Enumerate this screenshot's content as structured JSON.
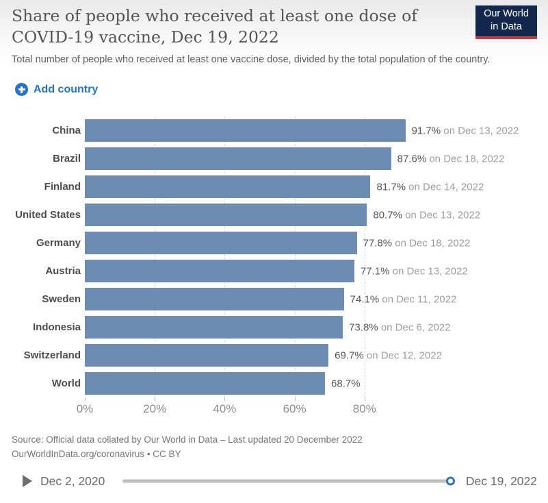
{
  "header": {
    "title": "Share of people who received at least one dose of COVID-19 vaccine, Dec 19, 2022",
    "subtitle": "Total number of people who received at least one vaccine dose, divided by the total population of the country.",
    "logo": {
      "line1": "Our World",
      "line2": "in Data"
    }
  },
  "controls": {
    "add_country_label": "Add country"
  },
  "chart_data": {
    "type": "bar",
    "orientation": "horizontal",
    "title": "Share of people who received at least one dose of COVID-19 vaccine, Dec 19, 2022",
    "categories": [
      "China",
      "Brazil",
      "Finland",
      "United States",
      "Germany",
      "Austria",
      "Sweden",
      "Indonesia",
      "Switzerland",
      "World"
    ],
    "values": [
      91.7,
      87.6,
      81.7,
      80.7,
      77.8,
      77.1,
      74.1,
      73.8,
      69.7,
      68.7
    ],
    "value_labels": [
      "91.7%",
      "87.6%",
      "81.7%",
      "80.7%",
      "77.8%",
      "77.1%",
      "74.1%",
      "73.8%",
      "69.7%",
      "68.7%"
    ],
    "date_labels": [
      "on Dec 13, 2022",
      "on Dec 18, 2022",
      "on Dec 14, 2022",
      "on Dec 13, 2022",
      "on Dec 18, 2022",
      "on Dec 13, 2022",
      "on Dec 11, 2022",
      "on Dec 6, 2022",
      "on Dec 12, 2022",
      ""
    ],
    "unit": "%",
    "xlim": [
      0,
      100
    ],
    "x_ticks": [
      "0%",
      "20%",
      "40%",
      "60%",
      "80%"
    ],
    "x_tick_positions": [
      0,
      20,
      40,
      60,
      80
    ],
    "grid": true,
    "grid_positions": [
      20,
      40,
      60,
      80
    ],
    "legend": "none",
    "colors": {
      "bar": "#6787b0",
      "accent_blue": "#2273cc",
      "logo_navy": "#12294d",
      "logo_red": "#d2383f",
      "slider_handle_blue": "#3276b6"
    }
  },
  "footer": {
    "source_line1": "Source: Official data collated by Our World in Data – Last updated 20 December 2022",
    "source_line2": "OurWorldInData.org/coronavirus • CC BY"
  },
  "timeline": {
    "start": "Dec 2, 2020",
    "end": "Dec 19, 2022"
  }
}
